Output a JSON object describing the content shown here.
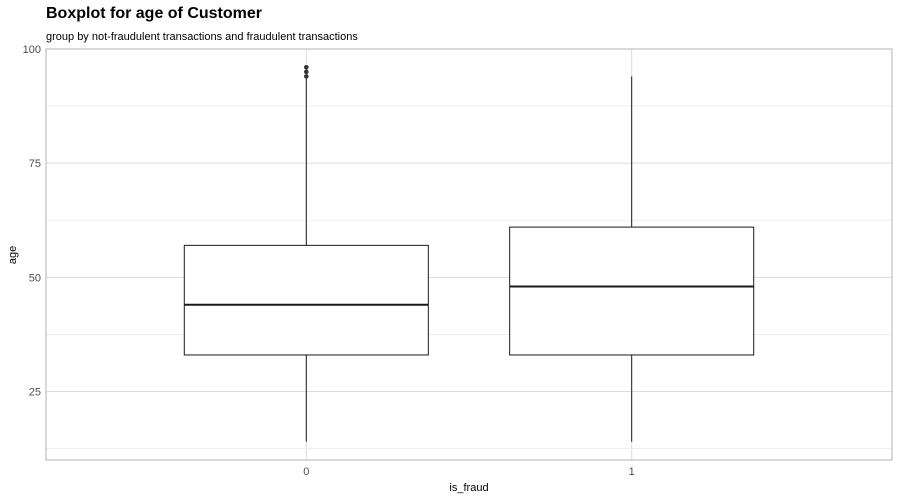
{
  "chart_data": {
    "type": "boxplot",
    "title": "Boxplot for age of Customer",
    "subtitle": "group by not-fraudulent transactions and fraudulent transactions",
    "xlabel": "is_fraud",
    "ylabel": "age",
    "categories": [
      "0",
      "1"
    ],
    "ylim": [
      10,
      100
    ],
    "yticks": [
      25,
      50,
      75,
      100
    ],
    "grid": true,
    "boxes": [
      {
        "category": "0",
        "whisker_low": 14,
        "q1": 33,
        "median": 44,
        "q3": 57,
        "whisker_high": 94,
        "outliers": [
          94,
          95,
          96
        ]
      },
      {
        "category": "1",
        "whisker_low": 14,
        "q1": 33,
        "median": 48,
        "q3": 61,
        "whisker_high": 94,
        "outliers": []
      }
    ],
    "colors": {
      "box_fill": "#ffffff",
      "line": "#1a1a1a",
      "grid": "#dcdcdc",
      "panel_border": "#b3b3b3"
    }
  }
}
